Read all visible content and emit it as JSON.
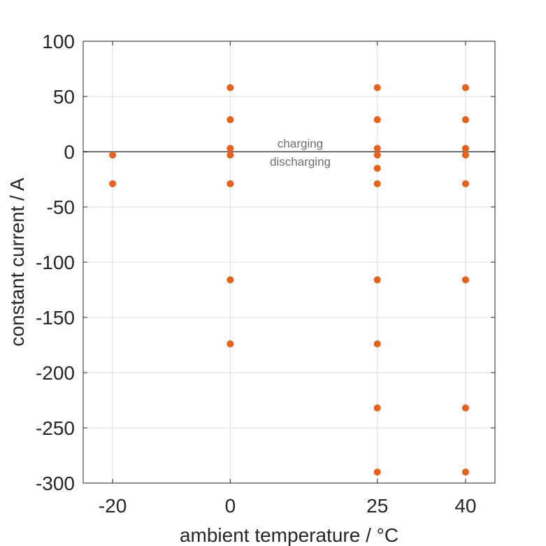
{
  "chart_data": {
    "type": "scatter",
    "title": "",
    "xlabel": "ambient temperature / °C",
    "ylabel": "constant current / A",
    "x_ticks": [
      -20,
      0,
      25,
      40
    ],
    "x_tick_labels": [
      "-20",
      "0",
      "25",
      "40"
    ],
    "xlim": [
      -25,
      45
    ],
    "y_ticks": [
      100,
      50,
      0,
      -50,
      -100,
      -150,
      -200,
      -250,
      -300
    ],
    "y_tick_labels": [
      "100",
      "50",
      "0",
      "-50",
      "-100",
      "-150",
      "-200",
      "-250",
      "-300"
    ],
    "ylim": [
      -300,
      100
    ],
    "grid": true,
    "reference_line": {
      "y": 0,
      "color": "#707070"
    },
    "annotations": {
      "above": "charging",
      "below": "discharging"
    },
    "marker_color": "#e8601c",
    "series": [
      {
        "points": [
          [
            -20,
            -3
          ],
          [
            -20,
            -29
          ],
          [
            0,
            58
          ],
          [
            0,
            29
          ],
          [
            0,
            3
          ],
          [
            0,
            -3
          ],
          [
            0,
            -29
          ],
          [
            0,
            -116
          ],
          [
            0,
            -174
          ],
          [
            25,
            58
          ],
          [
            25,
            29
          ],
          [
            25,
            3
          ],
          [
            25,
            -3
          ],
          [
            25,
            -15
          ],
          [
            25,
            -29
          ],
          [
            25,
            -116
          ],
          [
            25,
            -174
          ],
          [
            25,
            -232
          ],
          [
            25,
            -290
          ],
          [
            40,
            58
          ],
          [
            40,
            29
          ],
          [
            40,
            3
          ],
          [
            40,
            -3
          ],
          [
            40,
            -29
          ],
          [
            40,
            -116
          ],
          [
            40,
            -232
          ],
          [
            40,
            -290
          ]
        ]
      }
    ]
  }
}
